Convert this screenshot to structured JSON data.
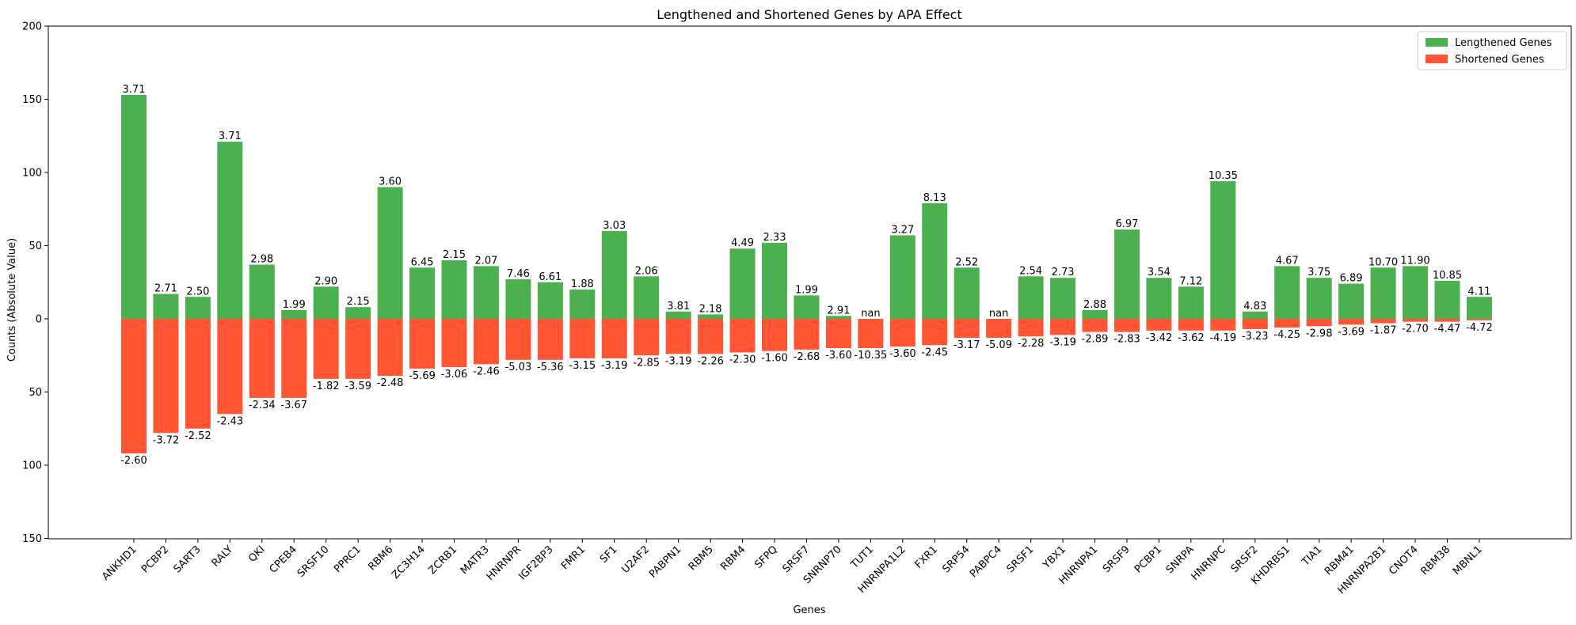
{
  "chart_data": {
    "type": "bar",
    "title": "Lengthened and Shortened Genes by APA Effect",
    "xlabel": "Genes",
    "ylabel": "Counts (Absolute Value)",
    "ylim": [
      -150,
      200
    ],
    "yticks": [
      -150,
      -100,
      -50,
      0,
      50,
      100,
      150,
      200
    ],
    "ytick_labels": [
      "150",
      "100",
      "50",
      "0",
      "50",
      "100",
      "150",
      "200"
    ],
    "grid": false,
    "legend_position": "top-right",
    "categories": [
      "ANKHD1",
      "PCBP2",
      "SART3",
      "RALY",
      "QKI",
      "CPEB4",
      "SRSF10",
      "PPRC1",
      "RBM6",
      "ZC3H14",
      "ZCRB1",
      "MATR3",
      "HNRNPR",
      "IGF2BP3",
      "FMR1",
      "SF1",
      "U2AF2",
      "PABPN1",
      "RBM5",
      "RBM4",
      "SFPQ",
      "SRSF7",
      "SNRNP70",
      "TUT1",
      "HNRNPA1L2",
      "FXR1",
      "SRP54",
      "PABPC4",
      "SRSF1",
      "YBX1",
      "HNRNPA1",
      "SRSF9",
      "PCBP1",
      "SNRPA",
      "HNRNPC",
      "SRSF2",
      "KHDRBS1",
      "TIA1",
      "RBM41",
      "HNRNPA2B1",
      "CNOT4",
      "RBM38",
      "MBNL1"
    ],
    "series": [
      {
        "name": "Lengthened Genes",
        "color": "#4caf50",
        "values": [
          153,
          17,
          15,
          121,
          37,
          6,
          22,
          8,
          90,
          35,
          40,
          36,
          27,
          25,
          20,
          60,
          29,
          5,
          3,
          48,
          52,
          16,
          2,
          0,
          57,
          79,
          35,
          0,
          29,
          28,
          6,
          61,
          28,
          22,
          94,
          5,
          36,
          28,
          24,
          35,
          36,
          26,
          15
        ],
        "labels": [
          "3.71",
          "2.71",
          "2.50",
          "3.71",
          "2.98",
          "1.99",
          "2.90",
          "2.15",
          "3.60",
          "6.45",
          "2.15",
          "2.07",
          "7.46",
          "6.61",
          "1.88",
          "3.03",
          "2.06",
          "3.81",
          "2.18",
          "4.49",
          "2.33",
          "1.99",
          "2.91",
          "nan",
          "3.27",
          "8.13",
          "2.52",
          "nan",
          "2.54",
          "2.73",
          "2.88",
          "6.97",
          "3.54",
          "7.12",
          "10.35",
          "4.83",
          "4.67",
          "3.75",
          "6.89",
          "10.70",
          "11.90",
          "10.85",
          "4.11"
        ]
      },
      {
        "name": "Shortened Genes",
        "color": "#ff5533",
        "values": [
          92,
          78,
          75,
          65,
          54,
          54,
          41,
          41,
          39,
          34,
          33,
          31,
          28,
          28,
          27,
          27,
          25,
          24,
          24,
          23,
          22,
          21,
          20,
          20,
          19,
          18,
          13,
          13,
          12,
          11,
          9,
          9,
          8,
          8,
          8,
          7,
          6,
          5,
          4,
          3,
          2,
          2,
          1
        ],
        "labels": [
          "-2.60",
          "-3.72",
          "-2.52",
          "-2.43",
          "-2.34",
          "-3.67",
          "-1.82",
          "-3.59",
          "-2.48",
          "-5.69",
          "-3.06",
          "-2.46",
          "-5.03",
          "-5.36",
          "-3.15",
          "-3.19",
          "-2.85",
          "-3.19",
          "-2.26",
          "-2.30",
          "-1.60",
          "-2.68",
          "-3.60",
          "-10.35",
          "-3.60",
          "-2.45",
          "-3.17",
          "-5.09",
          "-2.28",
          "-3.19",
          "-2.89",
          "-2.83",
          "-3.42",
          "-3.62",
          "-4.19",
          "-3.23",
          "-4.25",
          "-2.98",
          "-3.69",
          "-1.87",
          "-2.70",
          "-4.47",
          "-4.72"
        ]
      }
    ]
  }
}
